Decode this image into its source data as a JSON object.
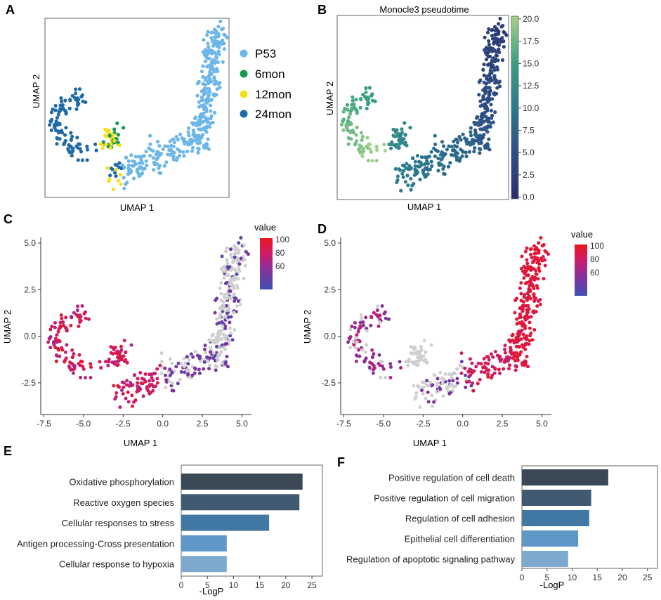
{
  "panels": {
    "A": {
      "letter": "A",
      "xlabel": "UMAP 1",
      "ylabel": "UMAP 2",
      "legend": [
        {
          "label": "P53",
          "color": "#6db6e8"
        },
        {
          "label": "6mon",
          "color": "#1a9850"
        },
        {
          "label": "12mon",
          "color": "#f2e11a"
        },
        {
          "label": "24mon",
          "color": "#1f6aa6"
        }
      ]
    },
    "B": {
      "letter": "B",
      "title": "Monocle3 pseudotime",
      "xlabel": "UMAP 1",
      "ylabel": "UMAP 2",
      "colorbar_ticks": [
        "20.0",
        "17.5",
        "15.0",
        "12.5",
        "10.0",
        "7.5",
        "5.0",
        "2.5",
        "0.0"
      ]
    },
    "C": {
      "letter": "C",
      "xlabel": "UMAP 1",
      "ylabel": "UMAP 2",
      "legend_title": "value",
      "colorbar_ticks": [
        "100",
        "80",
        "60"
      ],
      "xticks": [
        "-7.5",
        "-5.0",
        "-2.5",
        "0.0",
        "2.5",
        "5.0"
      ],
      "yticks": [
        "5.0",
        "2.5",
        "0.0",
        "-2.5"
      ]
    },
    "D": {
      "letter": "D",
      "xlabel": "UMAP 1",
      "ylabel": "UMAP 2",
      "legend_title": "value",
      "colorbar_ticks": [
        "100",
        "80",
        "60"
      ],
      "xticks": [
        "-7.5",
        "-5.0",
        "-2.5",
        "0.0",
        "2.5",
        "5.0"
      ],
      "yticks": [
        "5.0",
        "2.5",
        "0.0",
        "-2.5"
      ]
    },
    "E": {
      "letter": "E",
      "xlabel": "-LogP",
      "xticks": [
        "0",
        "5",
        "10",
        "15",
        "20",
        "25"
      ]
    },
    "F": {
      "letter": "F",
      "xlabel": "-LogP",
      "xticks": [
        "0",
        "5",
        "10",
        "15",
        "20",
        "25"
      ]
    }
  },
  "chart_data": [
    {
      "panel": "A",
      "type": "scatter",
      "xlabel": "UMAP 1",
      "ylabel": "UMAP 2",
      "legend": [
        "P53",
        "6mon",
        "12mon",
        "24mon"
      ]
    },
    {
      "panel": "B",
      "type": "scatter",
      "title": "Monocle3 pseudotime",
      "xlabel": "UMAP 1",
      "ylabel": "UMAP 2",
      "color_range": [
        0,
        20
      ]
    },
    {
      "panel": "C",
      "type": "scatter",
      "xlabel": "UMAP 1",
      "ylabel": "UMAP 2",
      "xlim": [
        -7.5,
        5.0
      ],
      "ylim": [
        -4.2,
        5.3
      ],
      "color_legend": "value",
      "color_range": [
        45,
        100
      ]
    },
    {
      "panel": "D",
      "type": "scatter",
      "xlabel": "UMAP 1",
      "ylabel": "UMAP 2",
      "xlim": [
        -7.5,
        5.0
      ],
      "ylim": [
        -4.2,
        5.3
      ],
      "color_legend": "value",
      "color_range": [
        45,
        100
      ]
    },
    {
      "panel": "E",
      "type": "bar",
      "orientation": "horizontal",
      "xlabel": "-LogP",
      "xlim": [
        0,
        27
      ],
      "categories": [
        "Oxidative phosphorylation",
        "Reactive oxygen species",
        "Cellular responses to stress",
        "Antigen processing-Cross presentation",
        "Cellular response to hypoxia"
      ],
      "values": [
        23.2,
        22.6,
        16.8,
        8.7,
        8.7
      ],
      "colors": [
        "#3b4856",
        "#415a72",
        "#4178a4",
        "#5f98c8",
        "#7ea9cf"
      ]
    },
    {
      "panel": "F",
      "type": "bar",
      "orientation": "horizontal",
      "xlabel": "-LogP",
      "xlim": [
        0,
        27
      ],
      "categories": [
        "Positive regulation of cell death",
        "Positive regulation of cell migration",
        "Regulation of cell adhesion",
        "Epithelial cell differentiation",
        "Regulation of apoptotic signaling pathway"
      ],
      "values": [
        17.2,
        13.8,
        13.4,
        11.2,
        9.2
      ],
      "colors": [
        "#3b4856",
        "#415a72",
        "#4178a4",
        "#5f98c8",
        "#7ea9cf"
      ]
    }
  ]
}
